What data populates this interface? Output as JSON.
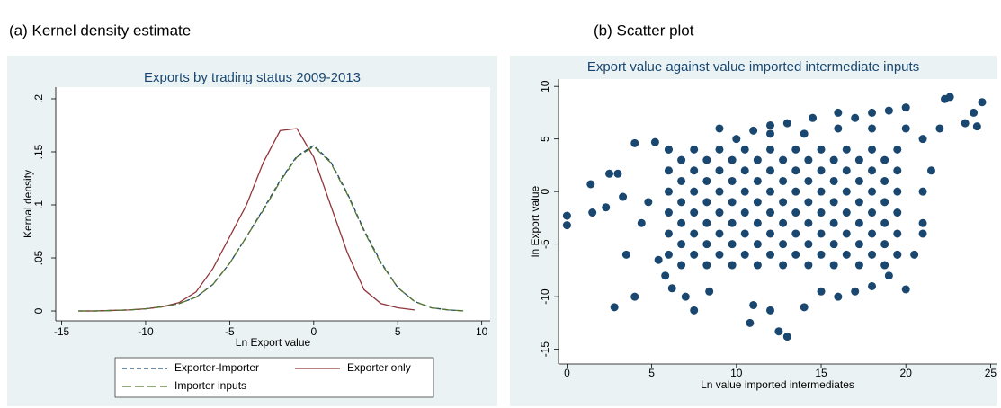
{
  "chart_data": [
    {
      "type": "line",
      "caption": "(a)  Kernel density estimate",
      "title": "Exports by trading status 2009-2013",
      "xlabel": "Ln Export value",
      "ylabel": "Kernal density",
      "x": [
        -14,
        -13,
        -12,
        -11,
        -10,
        -9,
        -8,
        -7,
        -6,
        -5,
        -4,
        -3,
        -2,
        -1,
        0,
        1,
        2,
        3,
        4,
        5,
        6,
        7,
        8,
        9
      ],
      "series": [
        {
          "name": "Exporter-Importer",
          "color": "#1a476f",
          "linestyle": "dashed",
          "values": [
            0,
            0,
            0.0005,
            0.001,
            0.002,
            0.004,
            0.007,
            0.013,
            0.025,
            0.045,
            0.07,
            0.096,
            0.123,
            0.146,
            0.156,
            0.141,
            0.111,
            0.076,
            0.046,
            0.022,
            0.009,
            0.003,
            0.001,
            0
          ]
        },
        {
          "name": "Exporter only",
          "color": "#90353b",
          "linestyle": "solid",
          "values": [
            0,
            0,
            0.0005,
            0.001,
            0.002,
            0.004,
            0.008,
            0.018,
            0.04,
            0.07,
            0.1,
            0.14,
            0.17,
            0.172,
            0.145,
            0.1,
            0.055,
            0.02,
            0.007,
            0.003,
            0.001,
            null,
            null,
            null
          ]
        },
        {
          "name": "Importer inputs",
          "color": "#55752f",
          "linestyle": "longdash",
          "values": [
            0,
            0,
            0.0005,
            0.001,
            0.002,
            0.004,
            0.007,
            0.013,
            0.025,
            0.045,
            0.07,
            0.095,
            0.122,
            0.145,
            0.155,
            0.14,
            0.11,
            0.075,
            0.045,
            0.022,
            0.009,
            0.003,
            0.001,
            0
          ]
        }
      ],
      "xlim": [
        -15.35,
        10.5
      ],
      "ylim": [
        -0.0093,
        0.211
      ],
      "xticks": [
        -15,
        -10,
        -5,
        0,
        5,
        10
      ],
      "yticks": [
        0,
        {
          "value": 0.05,
          "label": ".05"
        },
        {
          "value": 0.1,
          "label": ".1"
        },
        {
          "value": 0.15,
          "label": ".15"
        },
        {
          "value": 0.2,
          "label": ".2"
        }
      ],
      "legend": "bottom",
      "background": "#eaf2f3"
    },
    {
      "type": "scatter",
      "caption": "(b) Scatter plot",
      "title": "Export value against value imported intermediate inputs",
      "xlabel": "Ln value imported intermediates",
      "ylabel": "ln Export value",
      "color": "#1a476f",
      "x": [
        0,
        0,
        1.4,
        1.5,
        2.8,
        2.3,
        2.5,
        3,
        3.3,
        3.5,
        4,
        4,
        4.4,
        4.8,
        5.2,
        5.4,
        5.8,
        6,
        6.2,
        7,
        7.5,
        8.4,
        9,
        10.8,
        11,
        12,
        12.5,
        13,
        14,
        15,
        16,
        17,
        18,
        19,
        19.5,
        20,
        21,
        21.5,
        22,
        22.3,
        22.6,
        23.5,
        24,
        24.5,
        24.2,
        20,
        18,
        16,
        14.5,
        12,
        11,
        13,
        17,
        19,
        10,
        12,
        14,
        16,
        18,
        20,
        21,
        21,
        21,
        20.5,
        6,
        6,
        6,
        6,
        6,
        6,
        7.5,
        7.5,
        7.5,
        7.5,
        7.5,
        7.5,
        9,
        9,
        9,
        9,
        9,
        9,
        10.5,
        10.5,
        10.5,
        10.5,
        10.5,
        10.5,
        12,
        12,
        12,
        12,
        12,
        12,
        13.5,
        13.5,
        13.5,
        13.5,
        13.5,
        13.5,
        15,
        15,
        15,
        15,
        15,
        15,
        16.5,
        16.5,
        16.5,
        16.5,
        16.5,
        16.5,
        18,
        18,
        18,
        18,
        18,
        18,
        19.5,
        19.5,
        19.5,
        19.5,
        19.5,
        19.5,
        6.75,
        6.75,
        6.75,
        6.75,
        6.75,
        6.75,
        8.25,
        8.25,
        8.25,
        8.25,
        8.25,
        8.25,
        9.75,
        9.75,
        9.75,
        9.75,
        9.75,
        9.75,
        11.25,
        11.25,
        11.25,
        11.25,
        11.25,
        11.25,
        12.75,
        12.75,
        12.75,
        12.75,
        12.75,
        12.75,
        14.25,
        14.25,
        14.25,
        14.25,
        14.25,
        14.25,
        15.75,
        15.75,
        15.75,
        15.75,
        15.75,
        15.75,
        17.25,
        17.25,
        17.25,
        17.25,
        17.25,
        17.25,
        18.75,
        18.75,
        18.75,
        18.75,
        18.75,
        18.75
      ],
      "values": [
        -2.3,
        -3.2,
        0.7,
        -2,
        -11,
        -1.5,
        1.7,
        1.7,
        -0.5,
        -6,
        -10,
        4.6,
        -3,
        -1,
        4.7,
        -6.5,
        -8,
        4,
        -9.2,
        -10,
        -11.3,
        -9.5,
        6,
        -12.5,
        -10.8,
        -11.3,
        -13.3,
        -13.8,
        -11,
        -9.5,
        -10,
        -9.5,
        -9,
        -8,
        -6,
        -9.3,
        -3,
        2,
        6,
        8.8,
        9,
        6.5,
        7.5,
        8.5,
        6.2,
        8,
        7.5,
        7.5,
        7,
        6.3,
        5.8,
        6.5,
        7,
        7.7,
        5,
        5.5,
        5.5,
        6,
        6,
        6,
        5,
        0,
        -4,
        -6,
        -6,
        -4,
        -2,
        0,
        2,
        4,
        -6,
        -4,
        -2,
        0,
        2,
        4,
        -6,
        -4,
        -2,
        0,
        2,
        4,
        -6,
        -4,
        -2,
        0,
        2,
        4,
        -6,
        -4,
        -2,
        0,
        2,
        4,
        -6,
        -4,
        -2,
        0,
        2,
        4,
        -6,
        -4,
        -2,
        0,
        2,
        4,
        -6,
        -4,
        -2,
        0,
        2,
        4,
        -6,
        -4,
        -2,
        0,
        2,
        4,
        -6,
        -4,
        -2,
        0,
        2,
        4,
        -7,
        -5,
        -3,
        -1,
        1,
        3,
        -7,
        -5,
        -3,
        -1,
        1,
        3,
        -7,
        -5,
        -3,
        -1,
        1,
        3,
        -7,
        -5,
        -3,
        -1,
        1,
        3,
        -7,
        -5,
        -3,
        -1,
        1,
        3,
        -7,
        -5,
        -3,
        -1,
        1,
        3,
        -7,
        -5,
        -3,
        -1,
        1,
        3,
        -7,
        -5,
        -3,
        -1,
        1,
        3,
        -7,
        -5,
        -3,
        -1,
        1,
        3
      ],
      "xlim": [
        -0.5,
        25.35
      ],
      "ylim": [
        -16.4,
        10.7
      ],
      "xticks": [
        0,
        5,
        10,
        15,
        20,
        25
      ],
      "yticks": [
        -15,
        -10,
        -5,
        0,
        5,
        10
      ],
      "background": "#eaf2f3"
    }
  ]
}
